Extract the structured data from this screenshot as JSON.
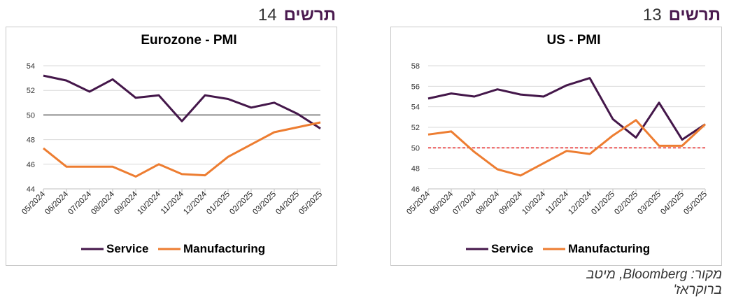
{
  "figures": [
    {
      "label": "תרשים",
      "number": "14",
      "chart_data": {
        "type": "line",
        "title": "Eurozone - PMI",
        "xlabel": "",
        "ylabel": "",
        "categories": [
          "05/2024",
          "06/2024",
          "07/2024",
          "08/2024",
          "09/2024",
          "10/2024",
          "11/2024",
          "12/2024",
          "01/2025",
          "02/2025",
          "03/2025",
          "04/2025",
          "05/2025"
        ],
        "ylim": [
          44,
          54
        ],
        "yticks": [
          "44",
          "46",
          "48",
          "50",
          "52",
          "54"
        ],
        "grid": true,
        "legend_position": "bottom",
        "series": [
          {
            "name": "Service",
            "color": "#44174a",
            "values": [
              53.2,
              52.8,
              51.9,
              52.9,
              51.4,
              51.6,
              49.5,
              51.6,
              51.3,
              50.6,
              51.0,
              50.1,
              48.9
            ]
          },
          {
            "name": "Manufacturing",
            "color": "#ed7d31",
            "values": [
              47.3,
              45.8,
              45.8,
              45.8,
              45.0,
              46.0,
              45.2,
              45.1,
              46.6,
              47.6,
              48.6,
              49.0,
              49.4
            ]
          }
        ],
        "reference_line": {
          "value": 50,
          "color": "#a6a6a6",
          "style": "solid"
        }
      }
    },
    {
      "label": "תרשים",
      "number": "13",
      "chart_data": {
        "type": "line",
        "title": "US - PMI",
        "xlabel": "",
        "ylabel": "",
        "categories": [
          "05/2024",
          "06/2024",
          "07/2024",
          "08/2024",
          "09/2024",
          "10/2024",
          "11/2024",
          "12/2024",
          "01/2025",
          "02/2025",
          "03/2025",
          "04/2025",
          "05/2025"
        ],
        "ylim": [
          46,
          58
        ],
        "yticks": [
          "46",
          "48",
          "50",
          "52",
          "54",
          "56",
          "58"
        ],
        "grid": true,
        "legend_position": "bottom",
        "series": [
          {
            "name": "Service",
            "color": "#44174a",
            "values": [
              54.8,
              55.3,
              55.0,
              55.7,
              55.2,
              55.0,
              56.1,
              56.8,
              52.8,
              51.0,
              54.4,
              50.8,
              52.3
            ]
          },
          {
            "name": "Manufacturing",
            "color": "#ed7d31",
            "values": [
              51.3,
              51.6,
              49.6,
              47.9,
              47.3,
              48.5,
              49.7,
              49.4,
              51.2,
              52.7,
              50.2,
              50.2,
              52.3
            ]
          }
        ],
        "reference_line": {
          "value": 50,
          "color": "#e41a1c",
          "style": "dashed"
        }
      }
    }
  ],
  "source": "מקור: Bloomberg, מיטב ברוקראז'"
}
